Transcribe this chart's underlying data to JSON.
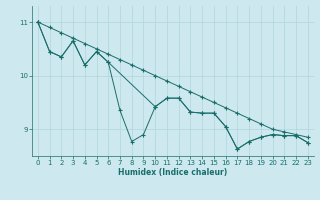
{
  "xlabel": "Humidex (Indice chaleur)",
  "background_color": "#cde8ef",
  "grid_color": "#b0d4dc",
  "line_color": "#1a6e6a",
  "xlim": [
    -0.5,
    23.5
  ],
  "ylim": [
    8.5,
    11.3
  ],
  "yticks": [
    9,
    10,
    11
  ],
  "xticks": [
    0,
    1,
    2,
    3,
    4,
    5,
    6,
    7,
    8,
    9,
    10,
    11,
    12,
    13,
    14,
    15,
    16,
    17,
    18,
    19,
    20,
    21,
    22,
    23
  ],
  "line1_x": [
    0,
    1,
    2,
    3,
    4,
    5,
    6,
    7,
    8,
    9,
    10,
    11,
    12,
    13,
    14,
    15,
    16,
    17,
    18,
    19,
    20,
    21,
    22,
    23
  ],
  "line1_y": [
    11.0,
    10.9,
    10.8,
    10.7,
    10.6,
    10.5,
    10.4,
    10.3,
    10.2,
    10.1,
    10.0,
    9.9,
    9.8,
    9.7,
    9.6,
    9.5,
    9.4,
    9.3,
    9.2,
    9.1,
    9.0,
    8.95,
    8.9,
    8.85
  ],
  "line2_x": [
    0,
    1,
    2,
    3,
    4,
    5,
    6,
    7,
    8,
    9,
    10,
    11,
    12,
    13,
    14,
    15,
    16,
    17,
    18,
    19,
    20,
    21,
    22,
    23
  ],
  "line2_y": [
    11.0,
    10.45,
    10.35,
    10.65,
    10.2,
    10.45,
    10.25,
    9.35,
    8.77,
    8.9,
    9.42,
    9.58,
    9.58,
    9.32,
    9.3,
    9.3,
    9.05,
    8.63,
    8.77,
    8.85,
    8.9,
    8.88,
    8.88,
    8.75
  ],
  "line3_x": [
    0,
    1,
    2,
    3,
    4,
    5,
    6,
    10,
    11,
    12,
    13,
    14,
    15,
    16,
    17,
    18,
    19,
    20,
    21,
    22,
    23
  ],
  "line3_y": [
    11.0,
    10.45,
    10.35,
    10.65,
    10.2,
    10.45,
    10.25,
    9.42,
    9.58,
    9.58,
    9.32,
    9.3,
    9.3,
    9.05,
    8.63,
    8.77,
    8.85,
    8.9,
    8.88,
    8.88,
    8.75
  ],
  "marker_size": 2.5,
  "linewidth": 0.7
}
